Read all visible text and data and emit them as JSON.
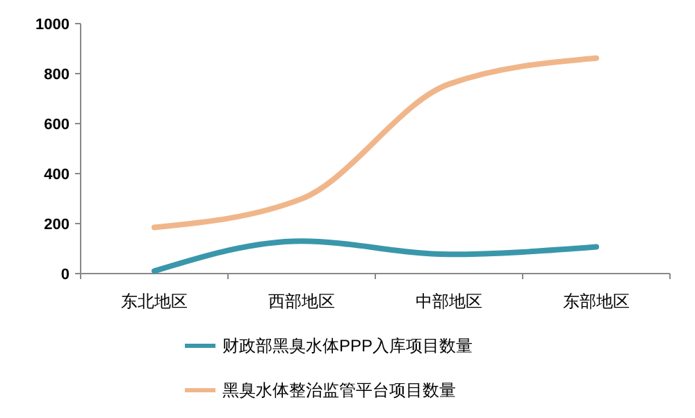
{
  "chart_data": {
    "type": "line",
    "categories": [
      "东北地区",
      "西部地区",
      "中部地区",
      "东部地区"
    ],
    "series": [
      {
        "name": "财政部黑臭水体PPP入库项目数量",
        "color": "#3a97ab",
        "values": [
          10,
          130,
          77,
          107
        ]
      },
      {
        "name": "黑臭水体整治监管平台项目数量",
        "color": "#f0b68a",
        "values": [
          185,
          299,
          758,
          862
        ]
      }
    ],
    "ylim": [
      0,
      1000
    ],
    "yticks": [
      0,
      200,
      400,
      600,
      800,
      1000
    ],
    "grid": false,
    "legend": "bottom",
    "marker": "none",
    "line_style": "solid"
  }
}
